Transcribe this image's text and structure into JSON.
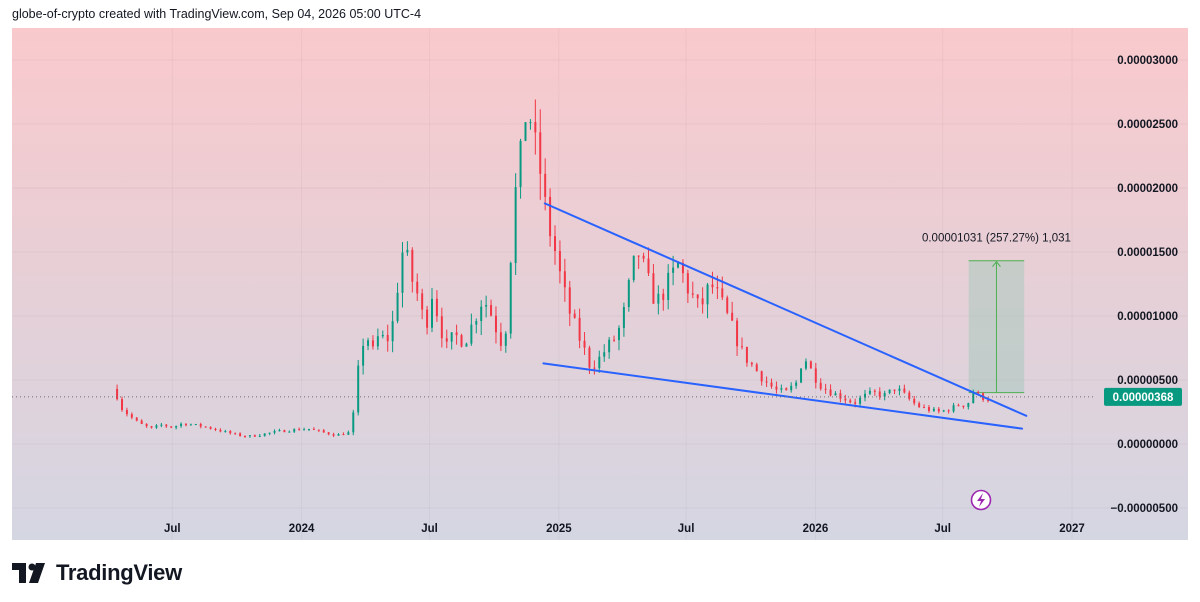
{
  "header": {
    "attribution": "globe-of-crypto created with TradingView.com, Sep 04, 2026 05:00 UTC-4"
  },
  "footer": {
    "brand": "TradingView"
  },
  "colors": {
    "up": "#089981",
    "down": "#f23645",
    "trendline": "#2962ff",
    "price_tag": "#089981",
    "bg_top": "#f9c9cc",
    "bg_bottom": "#d4d6e2"
  },
  "icons": {
    "lightning": "lightning-icon"
  },
  "chart_data": {
    "type": "candlestick",
    "title": "",
    "y_axis": {
      "ticks": [
        {
          "value": 3e-05,
          "label": "0.00003000"
        },
        {
          "value": 2.5e-05,
          "label": "0.00002500"
        },
        {
          "value": 2e-05,
          "label": "0.00002000"
        },
        {
          "value": 1.5e-05,
          "label": "0.00001500"
        },
        {
          "value": 1e-05,
          "label": "0.00001000"
        },
        {
          "value": 5e-06,
          "label": "0.00000500"
        },
        {
          "value": 0,
          "label": "0.00000000"
        },
        {
          "value": -5e-06,
          "label": "−0.00000500"
        }
      ],
      "range": [
        -7.5e-06,
        3.25e-05
      ]
    },
    "x_axis": {
      "ticks": [
        {
          "date": "2023-07-01",
          "label": "Jul"
        },
        {
          "date": "2024-01-01",
          "label": "2024"
        },
        {
          "date": "2024-07-01",
          "label": "Jul"
        },
        {
          "date": "2025-01-01",
          "label": "2025"
        },
        {
          "date": "2025-07-01",
          "label": "Jul"
        },
        {
          "date": "2026-01-01",
          "label": "2026"
        },
        {
          "date": "2026-07-01",
          "label": "Jul"
        },
        {
          "date": "2027-01-01",
          "label": "2027"
        }
      ],
      "range": [
        "2022-11-15",
        "2027-06-15"
      ]
    },
    "last_price": {
      "value": 3.68e-06,
      "label": "0.00000368"
    },
    "trendlines": [
      {
        "name": "upper",
        "points": [
          [
            "2024-12-12",
            1.88e-05
          ],
          [
            "2026-10-28",
            2.2e-06
          ]
        ]
      },
      {
        "name": "lower",
        "points": [
          [
            "2024-12-10",
            6.3e-06
          ],
          [
            "2026-10-22",
            1.2e-06
          ]
        ]
      }
    ],
    "measure": {
      "label": "0.00001031 (257.27%) 1,031",
      "from_date": "2026-08-07",
      "to_date": "2026-10-25",
      "low": 4.01e-06,
      "high": 1.432e-05
    },
    "series": [
      {
        "points": [
          [
            "2023-04-10",
            4.3e-06
          ],
          [
            "2023-04-20",
            2.8e-06
          ],
          [
            "2023-05-01",
            2.2e-06
          ],
          [
            "2023-05-15",
            1.6e-06
          ],
          [
            "2023-06-01",
            1.2e-06
          ],
          [
            "2023-06-15",
            1.5e-06
          ],
          [
            "2023-07-01",
            1.3e-06
          ],
          [
            "2023-07-15",
            1.6e-06
          ],
          [
            "2023-08-01",
            1.5e-06
          ],
          [
            "2023-08-20",
            1.3e-06
          ],
          [
            "2023-09-10",
            1e-06
          ],
          [
            "2023-10-01",
            7e-07
          ],
          [
            "2023-10-20",
            6e-07
          ],
          [
            "2023-11-10",
            8e-07
          ],
          [
            "2023-12-01",
            1e-06
          ],
          [
            "2023-12-20",
            1.1e-06
          ],
          [
            "2024-01-10",
            1.2e-06
          ],
          [
            "2024-02-01",
            9e-07
          ],
          [
            "2024-02-20",
            7e-07
          ],
          [
            "2024-03-10",
            9e-07
          ],
          [
            "2024-03-15",
            2.5e-06
          ],
          [
            "2024-03-22",
            6e-06
          ],
          [
            "2024-04-01",
            9e-06
          ],
          [
            "2024-04-10",
            7e-06
          ],
          [
            "2024-04-20",
            8.5e-06
          ],
          [
            "2024-05-01",
            8e-06
          ],
          [
            "2024-05-10",
            9.5e-06
          ],
          [
            "2024-05-18",
            1.3e-05
          ],
          [
            "2024-05-25",
            1.55e-05
          ],
          [
            "2024-06-05",
            1.3e-05
          ],
          [
            "2024-06-15",
            1.15e-05
          ],
          [
            "2024-06-25",
            9e-06
          ],
          [
            "2024-07-05",
            1.2e-05
          ],
          [
            "2024-07-15",
            9.5e-06
          ],
          [
            "2024-07-25",
            7.5e-06
          ],
          [
            "2024-08-05",
            8.5e-06
          ],
          [
            "2024-08-20",
            8e-06
          ],
          [
            "2024-09-01",
            9.5e-06
          ],
          [
            "2024-09-15",
            1.15e-05
          ],
          [
            "2024-09-28",
            1e-05
          ],
          [
            "2024-10-10",
            8e-06
          ],
          [
            "2024-10-20",
            9.5e-06
          ],
          [
            "2024-10-28",
            1.9e-05
          ],
          [
            "2024-11-05",
            2.05e-05
          ],
          [
            "2024-11-12",
            2.5e-05
          ],
          [
            "2024-11-18",
            2.7e-05
          ],
          [
            "2024-11-26",
            2.35e-05
          ],
          [
            "2024-12-05",
            2.15e-05
          ],
          [
            "2024-12-15",
            1.75e-05
          ],
          [
            "2024-12-25",
            1.55e-05
          ],
          [
            "2025-01-05",
            1.25e-05
          ],
          [
            "2025-01-15",
            1.05e-05
          ],
          [
            "2025-01-25",
            9e-06
          ],
          [
            "2025-02-05",
            7.5e-06
          ],
          [
            "2025-02-15",
            6e-06
          ],
          [
            "2025-02-25",
            6.5e-06
          ],
          [
            "2025-03-10",
            7.5e-06
          ],
          [
            "2025-03-25",
            8.5e-06
          ],
          [
            "2025-04-05",
            1.05e-05
          ],
          [
            "2025-04-15",
            1.35e-05
          ],
          [
            "2025-04-25",
            1.5e-05
          ],
          [
            "2025-05-05",
            1.3e-05
          ],
          [
            "2025-05-20",
            1.1e-05
          ],
          [
            "2025-06-05",
            1.25e-05
          ],
          [
            "2025-06-20",
            1.4e-05
          ],
          [
            "2025-07-05",
            1.2e-05
          ],
          [
            "2025-07-20",
            1.05e-05
          ],
          [
            "2025-08-05",
            1.25e-05
          ],
          [
            "2025-08-20",
            1.1e-05
          ],
          [
            "2025-09-05",
            9e-06
          ],
          [
            "2025-09-20",
            7e-06
          ],
          [
            "2025-10-05",
            6e-06
          ],
          [
            "2025-10-20",
            5e-06
          ],
          [
            "2025-11-05",
            4.2e-06
          ],
          [
            "2025-11-20",
            4e-06
          ],
          [
            "2025-12-05",
            4.8e-06
          ],
          [
            "2025-12-15",
            7e-06
          ],
          [
            "2025-12-28",
            5.5e-06
          ],
          [
            "2026-01-10",
            4.5e-06
          ],
          [
            "2026-01-25",
            4e-06
          ],
          [
            "2026-02-10",
            3.6e-06
          ],
          [
            "2026-02-25",
            3.2e-06
          ],
          [
            "2026-03-10",
            3.7e-06
          ],
          [
            "2026-03-25",
            4e-06
          ],
          [
            "2026-04-10",
            3.8e-06
          ],
          [
            "2026-04-25",
            4.4e-06
          ],
          [
            "2026-05-10",
            3.7e-06
          ],
          [
            "2026-05-25",
            3e-06
          ],
          [
            "2026-06-10",
            2.7e-06
          ],
          [
            "2026-06-25",
            2.5e-06
          ],
          [
            "2026-07-10",
            2.7e-06
          ],
          [
            "2026-07-25",
            3.1e-06
          ],
          [
            "2026-08-05",
            3e-06
          ],
          [
            "2026-08-12",
            4.2e-06
          ],
          [
            "2026-08-22",
            3.7e-06
          ],
          [
            "2026-09-01",
            3.6e-06
          ]
        ]
      }
    ]
  }
}
